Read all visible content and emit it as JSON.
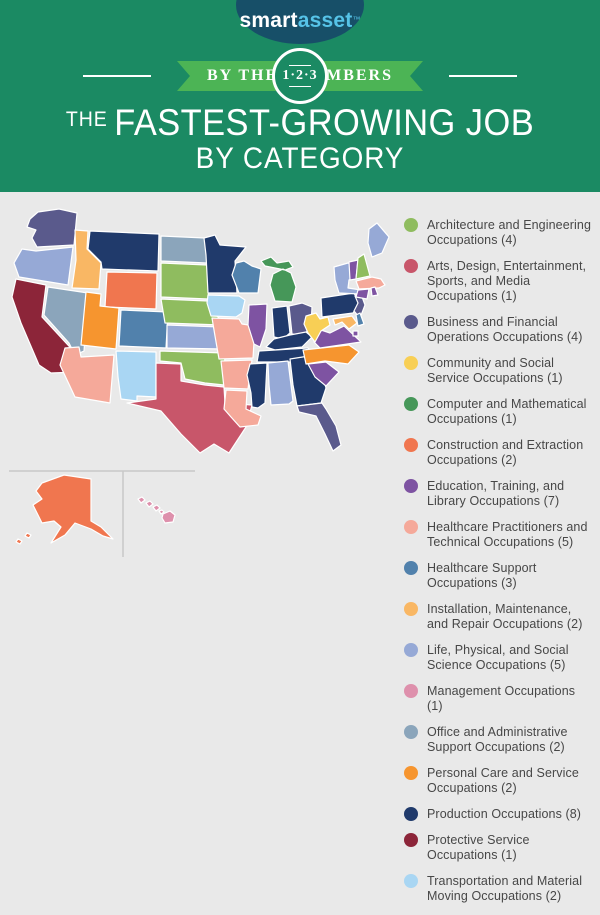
{
  "header": {
    "logo": {
      "part1": "smart",
      "part2": "asset",
      "tm": "™"
    },
    "banner": {
      "left_text": "BY THE",
      "circle_text": "1·2·3",
      "right_text": "NUMBERS"
    },
    "title_prefix": "THE",
    "title_main": "FASTEST-GROWING JOB",
    "title_sub": "BY CATEGORY",
    "colors": {
      "background": "#1B8A63",
      "ribbon": "#4CB455",
      "logo_bg": "#174F68",
      "logo_accent": "#56C3E8"
    }
  },
  "legend": {
    "items": [
      {
        "id": "architecture",
        "label": "Architecture and Engineering Occupations (4)",
        "count": 4,
        "color": "#8FBC5F"
      },
      {
        "id": "arts",
        "label": "Arts, Design, Entertainment, Sports, and Media Occupations (1)",
        "count": 1,
        "color": "#C8566A"
      },
      {
        "id": "business",
        "label": "Business and Financial Operations Occupations (4)",
        "count": 4,
        "color": "#5A5A8C"
      },
      {
        "id": "community",
        "label": "Community and Social Service Occupations (1)",
        "count": 1,
        "color": "#F8CF55"
      },
      {
        "id": "computer",
        "label": "Computer and Mathematical Occupations (1)",
        "count": 1,
        "color": "#469759"
      },
      {
        "id": "construction",
        "label": "Construction and Extraction Occupations (2)",
        "count": 2,
        "color": "#F0764F"
      },
      {
        "id": "education",
        "label": "Education, Training, and Library Occupations (7)",
        "count": 7,
        "color": "#7E53A2"
      },
      {
        "id": "healthcare_practitioners",
        "label": "Healthcare Practitioners and Technical Occupations (5)",
        "count": 5,
        "color": "#F5A99A"
      },
      {
        "id": "healthcare_support",
        "label": "Healthcare Support Occupations (3)",
        "count": 3,
        "color": "#5181AC"
      },
      {
        "id": "installation",
        "label": "Installation, Maintenance, and Repair Occupations (2)",
        "count": 2,
        "color": "#F9B764"
      },
      {
        "id": "life_physical",
        "label": "Life, Physical, and Social Science Occupations (5)",
        "count": 5,
        "color": "#96A9D6"
      },
      {
        "id": "management",
        "label": "Management Occupations (1)",
        "count": 1,
        "color": "#DE90AC"
      },
      {
        "id": "office",
        "label": "Office and Administrative Support Occupations (2)",
        "count": 2,
        "color": "#8BA5BB"
      },
      {
        "id": "personal_care",
        "label": "Personal Care and Service Occupations (2)",
        "count": 2,
        "color": "#F6952F"
      },
      {
        "id": "production",
        "label": "Production Occupations (8)",
        "count": 8,
        "color": "#203A6B"
      },
      {
        "id": "protective",
        "label": "Protective Service Occupations (1)",
        "count": 1,
        "color": "#8C2539"
      },
      {
        "id": "transportation",
        "label": "Transportation and Material Moving Occupations (2)",
        "count": 2,
        "color": "#A9D6F3"
      }
    ]
  },
  "map": {
    "background": "#E9E9E9",
    "state_border_color": "#FFFFFF",
    "inset_divider_color": "#C8C8C8",
    "states": [
      {
        "id": "WA",
        "name": "Washington",
        "category": "business"
      },
      {
        "id": "OR",
        "name": "Oregon",
        "category": "life_physical"
      },
      {
        "id": "CA",
        "name": "California",
        "category": "protective"
      },
      {
        "id": "NV",
        "name": "Nevada",
        "category": "office"
      },
      {
        "id": "ID",
        "name": "Idaho",
        "category": "installation"
      },
      {
        "id": "MT",
        "name": "Montana",
        "category": "production"
      },
      {
        "id": "WY",
        "name": "Wyoming",
        "category": "construction"
      },
      {
        "id": "UT",
        "name": "Utah",
        "category": "personal_care"
      },
      {
        "id": "CO",
        "name": "Colorado",
        "category": "healthcare_support"
      },
      {
        "id": "AZ",
        "name": "Arizona",
        "category": "healthcare_practitioners"
      },
      {
        "id": "NM",
        "name": "New Mexico",
        "category": "transportation"
      },
      {
        "id": "ND",
        "name": "North Dakota",
        "category": "office"
      },
      {
        "id": "SD",
        "name": "South Dakota",
        "category": "architecture"
      },
      {
        "id": "NE",
        "name": "Nebraska",
        "category": "architecture"
      },
      {
        "id": "KS",
        "name": "Kansas",
        "category": "life_physical"
      },
      {
        "id": "OK",
        "name": "Oklahoma",
        "category": "architecture"
      },
      {
        "id": "TX",
        "name": "Texas",
        "category": "arts"
      },
      {
        "id": "MN",
        "name": "Minnesota",
        "category": "production"
      },
      {
        "id": "IA",
        "name": "Iowa",
        "category": "transportation"
      },
      {
        "id": "MO",
        "name": "Missouri",
        "category": "healthcare_practitioners"
      },
      {
        "id": "AR",
        "name": "Arkansas",
        "category": "healthcare_practitioners"
      },
      {
        "id": "LA",
        "name": "Louisiana",
        "category": "healthcare_practitioners"
      },
      {
        "id": "WI",
        "name": "Wisconsin",
        "category": "healthcare_support"
      },
      {
        "id": "IL",
        "name": "Illinois",
        "category": "education"
      },
      {
        "id": "MI",
        "name": "Michigan",
        "category": "computer"
      },
      {
        "id": "IN",
        "name": "Indiana",
        "category": "production"
      },
      {
        "id": "OH",
        "name": "Ohio",
        "category": "business"
      },
      {
        "id": "KY",
        "name": "Kentucky",
        "category": "production"
      },
      {
        "id": "TN",
        "name": "Tennessee",
        "category": "production"
      },
      {
        "id": "MS",
        "name": "Mississippi",
        "category": "production"
      },
      {
        "id": "AL",
        "name": "Alabama",
        "category": "life_physical"
      },
      {
        "id": "GA",
        "name": "Georgia",
        "category": "production"
      },
      {
        "id": "FL",
        "name": "Florida",
        "category": "business"
      },
      {
        "id": "SC",
        "name": "South Carolina",
        "category": "education"
      },
      {
        "id": "NC",
        "name": "North Carolina",
        "category": "personal_care"
      },
      {
        "id": "VA",
        "name": "Virginia",
        "category": "education"
      },
      {
        "id": "WV",
        "name": "West Virginia",
        "category": "community"
      },
      {
        "id": "PA",
        "name": "Pennsylvania",
        "category": "production"
      },
      {
        "id": "NY",
        "name": "New York",
        "category": "life_physical"
      },
      {
        "id": "NJ",
        "name": "New Jersey",
        "category": "business"
      },
      {
        "id": "MD",
        "name": "Maryland",
        "category": "installation"
      },
      {
        "id": "DE",
        "name": "Delaware",
        "category": "healthcare_support"
      },
      {
        "id": "VT",
        "name": "Vermont",
        "category": "education"
      },
      {
        "id": "NH",
        "name": "New Hampshire",
        "category": "architecture"
      },
      {
        "id": "ME",
        "name": "Maine",
        "category": "life_physical"
      },
      {
        "id": "MA",
        "name": "Massachusetts",
        "category": "healthcare_practitioners"
      },
      {
        "id": "CT",
        "name": "Connecticut",
        "category": "education"
      },
      {
        "id": "RI",
        "name": "Rhode Island",
        "category": "education"
      },
      {
        "id": "DC",
        "name": "District of Columbia",
        "category": "education"
      },
      {
        "id": "AK",
        "name": "Alaska",
        "category": "construction"
      },
      {
        "id": "HI",
        "name": "Hawaii",
        "category": "management"
      }
    ]
  }
}
